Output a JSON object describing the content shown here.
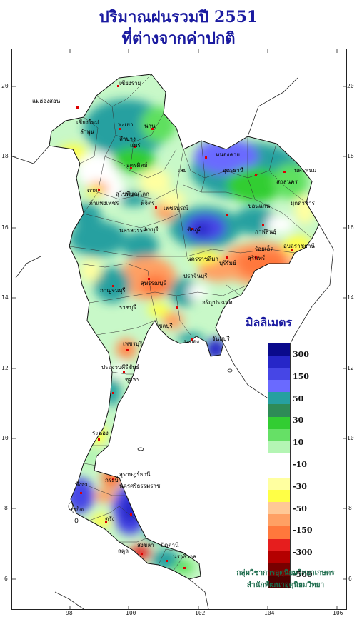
{
  "title": {
    "line1": "ปริมาณฝนรวมปี 2551",
    "line2": "ที่ต่างจากค่าปกติ"
  },
  "axes": {
    "x_ticks": [
      "98",
      "100",
      "102",
      "104",
      "106"
    ],
    "y_ticks": [
      "20",
      "18",
      "16",
      "14",
      "12",
      "10",
      "8",
      "6"
    ]
  },
  "legend": {
    "title": "มิลลิเมตร",
    "labels": [
      "300",
      "150",
      "50",
      "30",
      "10",
      "-10",
      "-30",
      "-50",
      "-150",
      "-300",
      "-500"
    ],
    "colors": [
      "#0a0a8c",
      "#2626c8",
      "#4646e6",
      "#6a6aff",
      "#26a0a0",
      "#2e8b57",
      "#32cd32",
      "#66e066",
      "#b4f5b4",
      "#ffffff",
      "#ffffff",
      "#ffffa0",
      "#ffff46",
      "#ffc896",
      "#ffa064",
      "#ff783c",
      "#e61e1e",
      "#b40000",
      "#780000",
      "#4b0000"
    ]
  },
  "province_labels": [
    "เชียงราย",
    "แม่ฮ่องสอน",
    "เชียงใหม่",
    "ลำพูน",
    "พะเยา",
    "น่าน",
    "ลำปาง",
    "แพร่",
    "ตาก",
    "อุตรดิตถ์",
    "สุโขทัย",
    "พิษณุโลก",
    "กำแพงเพชร",
    "พิจิตร",
    "เพชรบูรณ์",
    "นครสวรรค์",
    "ลพบุรี",
    "หนองคาย",
    "อุดรธานี",
    "นครพนม",
    "สกลนคร",
    "เลย",
    "มุกดาหาร",
    "ขอนแก่น",
    "ชัยภูมิ",
    "กาฬสินธุ์",
    "ร้อยเอ็ด",
    "อุบลราชธานี",
    "นครราชสีมา",
    "บุรีรัมย์",
    "สุรินทร์",
    "ปราจีนบุรี",
    "อรัญประเทศ",
    "ชลบุรี",
    "ระยอง",
    "จันทบุรี",
    "กาญจนบุรี",
    "สุพรรณบุรี",
    "ราชบุรี",
    "เพชรบุรี",
    "ประจวบคีรีขันธ์",
    "ชุมพร",
    "ระนอง",
    "สุราษฎร์ธานี",
    "พังงา",
    "ภูเก็ต",
    "กระบี่",
    "นครศรีธรรมราช",
    "ตรัง",
    "สตูล",
    "สงขลา",
    "ปัตตานี",
    "นราธิวาส"
  ],
  "credit": {
    "line1": "กลุ่มวิชาการอุตุนิยมวิทยาเกษตร",
    "line2": "สำนักพัฒนาอุตุนิยมวิทยา"
  }
}
